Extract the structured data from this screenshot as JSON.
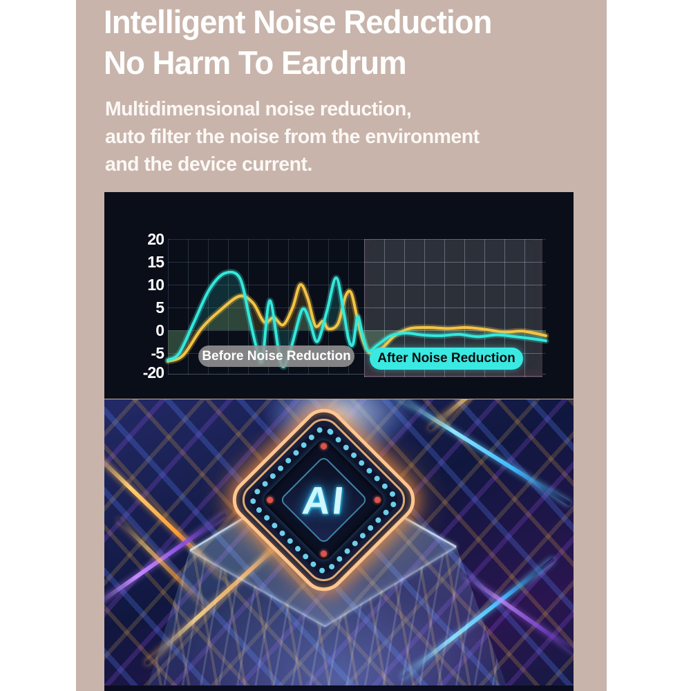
{
  "colors": {
    "card_background": "#c9b4ab",
    "chart_background": "#0a0e18",
    "after_zone_background": "#2c3039",
    "cyan_line": "#35e8dc",
    "yellow_line": "#f6c445",
    "before_pill": "#949494",
    "after_pill": "#3ae9e2"
  },
  "header": {
    "title_line1": "Intelligent Noise Reduction",
    "title_line2": "No Harm To Eardrum",
    "subtitle_line1": "Multidimensional noise reduction,",
    "subtitle_line2": "auto filter the noise from the environment",
    "subtitle_line3": "and the device current.",
    "text_color": "#ffffff"
  },
  "chart_data": {
    "type": "line",
    "title": "",
    "xlabel": "",
    "ylabel": "",
    "ylim": [
      -20,
      20
    ],
    "grid": true,
    "y_ticks": [
      "20",
      "15",
      "10",
      "5",
      "0",
      "-5",
      "-20"
    ],
    "zones": [
      {
        "label": "Before Noise Reduction",
        "start_fraction": 0.0
      },
      {
        "label": "After Noise Reduction",
        "start_fraction": 0.52
      }
    ],
    "series": [
      {
        "color_name": "yellow",
        "hex": "#f6c445",
        "points": [
          [
            0,
            -6.8
          ],
          [
            0.04,
            -5.5
          ],
          [
            0.09,
            0.5
          ],
          [
            0.14,
            4.5
          ],
          [
            0.19,
            7.5
          ],
          [
            0.225,
            6
          ],
          [
            0.255,
            1.8
          ],
          [
            0.28,
            2.8
          ],
          [
            0.305,
            1.2
          ],
          [
            0.33,
            5
          ],
          [
            0.35,
            10
          ],
          [
            0.37,
            7
          ],
          [
            0.39,
            1
          ],
          [
            0.41,
            2
          ],
          [
            0.425,
            0.3
          ],
          [
            0.45,
            1.5
          ],
          [
            0.47,
            7.5
          ],
          [
            0.485,
            8.2
          ],
          [
            0.5,
            3
          ],
          [
            0.515,
            -2
          ],
          [
            0.535,
            -5
          ],
          [
            0.565,
            -4
          ],
          [
            0.6,
            -1.2
          ],
          [
            0.64,
            0.4
          ],
          [
            0.69,
            0.6
          ],
          [
            0.74,
            0.4
          ],
          [
            0.79,
            0.6
          ],
          [
            0.84,
            0.2
          ],
          [
            0.89,
            -0.4
          ],
          [
            0.94,
            -0.2
          ],
          [
            1,
            -1.2
          ]
        ]
      },
      {
        "color_name": "cyan",
        "hex": "#35e8dc",
        "points": [
          [
            0,
            -6.5
          ],
          [
            0.03,
            -5
          ],
          [
            0.07,
            2
          ],
          [
            0.11,
            9
          ],
          [
            0.15,
            12.5
          ],
          [
            0.19,
            11.5
          ],
          [
            0.215,
            3
          ],
          [
            0.235,
            -4
          ],
          [
            0.25,
            -6.5
          ],
          [
            0.27,
            6.5
          ],
          [
            0.3,
            -7.5
          ],
          [
            0.325,
            -4
          ],
          [
            0.355,
            4.5
          ],
          [
            0.375,
            2
          ],
          [
            0.395,
            -2.5
          ],
          [
            0.42,
            4
          ],
          [
            0.445,
            11.5
          ],
          [
            0.465,
            4
          ],
          [
            0.478,
            -2
          ],
          [
            0.49,
            -3
          ],
          [
            0.502,
            3
          ],
          [
            0.515,
            -1
          ],
          [
            0.53,
            -4.5
          ],
          [
            0.555,
            -3.2
          ],
          [
            0.59,
            -1.2
          ],
          [
            0.63,
            -0.6
          ],
          [
            0.67,
            -1
          ],
          [
            0.72,
            -1.2
          ],
          [
            0.77,
            -0.9
          ],
          [
            0.82,
            -1.4
          ],
          [
            0.87,
            -1
          ],
          [
            0.92,
            -1.4
          ],
          [
            0.96,
            -1.8
          ],
          [
            1,
            -2.3
          ]
        ]
      }
    ]
  },
  "chip_image": {
    "label": "AI"
  }
}
